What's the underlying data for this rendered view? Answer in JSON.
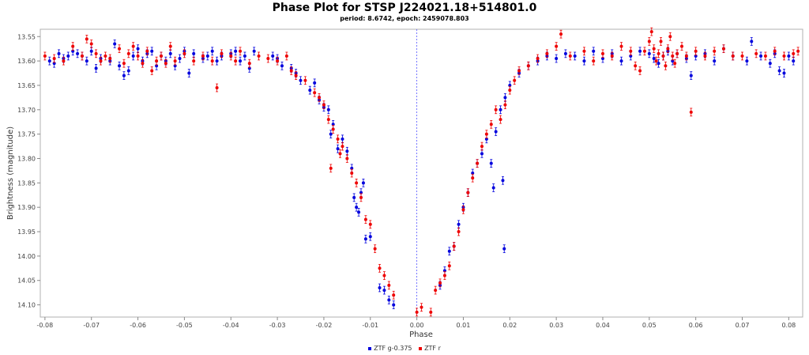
{
  "chart_data": {
    "type": "scatter",
    "title": "Phase Plot for STSP J224021.18+514801.0",
    "subtitle": "period: 8.6742, epoch: 2459078.803",
    "xlabel": "Phase",
    "ylabel": "Brightness (magnitude)",
    "xlim": [
      -0.081,
      0.083
    ],
    "ylim": [
      14.125,
      13.535
    ],
    "y_inverted": true,
    "x_ticks": [
      "-0.08",
      "-0.07",
      "-0.06",
      "-0.05",
      "-0.04",
      "-0.03",
      "-0.02",
      "-0.01",
      "0.00",
      "0.01",
      "0.02",
      "0.03",
      "0.04",
      "0.05",
      "0.06",
      "0.07",
      "0.08"
    ],
    "y_ticks": [
      "13.55",
      "13.60",
      "13.65",
      "13.70",
      "13.75",
      "13.80",
      "13.85",
      "13.90",
      "13.95",
      "14.00",
      "14.05",
      "14.10"
    ],
    "grid": false,
    "legend_position": "bottom",
    "reference_line_x": 0.0,
    "error_bar": 0.008,
    "series": [
      {
        "name": "ZTF g-0.375",
        "color": "#0000dd",
        "points": [
          [
            -0.079,
            13.6
          ],
          [
            -0.078,
            13.605
          ],
          [
            -0.077,
            13.585
          ],
          [
            -0.076,
            13.595
          ],
          [
            -0.075,
            13.59
          ],
          [
            -0.074,
            13.58
          ],
          [
            -0.073,
            13.585
          ],
          [
            -0.072,
            13.59
          ],
          [
            -0.071,
            13.6
          ],
          [
            -0.07,
            13.58
          ],
          [
            -0.069,
            13.615
          ],
          [
            -0.068,
            13.595
          ],
          [
            -0.066,
            13.6
          ],
          [
            -0.065,
            13.565
          ],
          [
            -0.064,
            13.61
          ],
          [
            -0.063,
            13.63
          ],
          [
            -0.062,
            13.62
          ],
          [
            -0.061,
            13.59
          ],
          [
            -0.06,
            13.575
          ],
          [
            -0.059,
            13.6
          ],
          [
            -0.058,
            13.585
          ],
          [
            -0.057,
            13.58
          ],
          [
            -0.056,
            13.61
          ],
          [
            -0.055,
            13.59
          ],
          [
            -0.054,
            13.6
          ],
          [
            -0.053,
            13.585
          ],
          [
            -0.052,
            13.61
          ],
          [
            -0.051,
            13.595
          ],
          [
            -0.05,
            13.58
          ],
          [
            -0.049,
            13.625
          ],
          [
            -0.048,
            13.585
          ],
          [
            -0.046,
            13.595
          ],
          [
            -0.045,
            13.59
          ],
          [
            -0.044,
            13.58
          ],
          [
            -0.043,
            13.6
          ],
          [
            -0.042,
            13.59
          ],
          [
            -0.04,
            13.585
          ],
          [
            -0.039,
            13.58
          ],
          [
            -0.038,
            13.6
          ],
          [
            -0.037,
            13.59
          ],
          [
            -0.036,
            13.615
          ],
          [
            -0.035,
            13.58
          ],
          [
            -0.031,
            13.59
          ],
          [
            -0.03,
            13.595
          ],
          [
            -0.029,
            13.61
          ],
          [
            -0.027,
            13.615
          ],
          [
            -0.026,
            13.625
          ],
          [
            -0.025,
            13.64
          ],
          [
            -0.023,
            13.66
          ],
          [
            -0.022,
            13.645
          ],
          [
            -0.021,
            13.68
          ],
          [
            -0.02,
            13.695
          ],
          [
            -0.019,
            13.7
          ],
          [
            -0.0185,
            13.75
          ],
          [
            -0.018,
            13.73
          ],
          [
            -0.017,
            13.78
          ],
          [
            -0.016,
            13.76
          ],
          [
            -0.015,
            13.785
          ],
          [
            -0.014,
            13.82
          ],
          [
            -0.0135,
            13.88
          ],
          [
            -0.013,
            13.9
          ],
          [
            -0.0125,
            13.91
          ],
          [
            -0.012,
            13.87
          ],
          [
            -0.0115,
            13.85
          ],
          [
            -0.011,
            13.965
          ],
          [
            -0.01,
            13.96
          ],
          [
            -0.008,
            14.065
          ],
          [
            -0.007,
            14.07
          ],
          [
            -0.006,
            14.09
          ],
          [
            -0.005,
            14.1
          ],
          [
            0.005,
            14.06
          ],
          [
            0.006,
            14.03
          ],
          [
            0.007,
            13.99
          ],
          [
            0.008,
            13.98
          ],
          [
            0.009,
            13.935
          ],
          [
            0.01,
            13.9
          ],
          [
            0.011,
            13.87
          ],
          [
            0.012,
            13.83
          ],
          [
            0.013,
            13.81
          ],
          [
            0.014,
            13.79
          ],
          [
            0.015,
            13.76
          ],
          [
            0.016,
            13.81
          ],
          [
            0.0165,
            13.86
          ],
          [
            0.017,
            13.745
          ],
          [
            0.018,
            13.7
          ],
          [
            0.019,
            13.675
          ],
          [
            0.0185,
            13.845
          ],
          [
            0.0188,
            13.985
          ],
          [
            0.02,
            13.65
          ],
          [
            0.022,
            13.625
          ],
          [
            0.024,
            13.61
          ],
          [
            0.026,
            13.6
          ],
          [
            0.028,
            13.59
          ],
          [
            0.03,
            13.595
          ],
          [
            0.032,
            13.585
          ],
          [
            0.034,
            13.59
          ],
          [
            0.036,
            13.6
          ],
          [
            0.038,
            13.58
          ],
          [
            0.04,
            13.595
          ],
          [
            0.042,
            13.585
          ],
          [
            0.044,
            13.6
          ],
          [
            0.046,
            13.59
          ],
          [
            0.048,
            13.58
          ],
          [
            0.05,
            13.585
          ],
          [
            0.051,
            13.595
          ],
          [
            0.052,
            13.605
          ],
          [
            0.053,
            13.59
          ],
          [
            0.054,
            13.58
          ],
          [
            0.055,
            13.6
          ],
          [
            0.056,
            13.585
          ],
          [
            0.058,
            13.595
          ],
          [
            0.059,
            13.63
          ],
          [
            0.06,
            13.59
          ],
          [
            0.062,
            13.585
          ],
          [
            0.064,
            13.6
          ],
          [
            0.066,
            13.575
          ],
          [
            0.068,
            13.59
          ],
          [
            0.071,
            13.6
          ],
          [
            0.072,
            13.56
          ],
          [
            0.074,
            13.59
          ],
          [
            0.076,
            13.605
          ],
          [
            0.077,
            13.585
          ],
          [
            0.078,
            13.62
          ],
          [
            0.079,
            13.625
          ],
          [
            0.08,
            13.59
          ],
          [
            0.081,
            13.6
          ]
        ]
      },
      {
        "name": "ZTF r",
        "color": "#ee0000",
        "points": [
          [
            -0.08,
            13.59
          ],
          [
            -0.078,
            13.595
          ],
          [
            -0.076,
            13.6
          ],
          [
            -0.074,
            13.57
          ],
          [
            -0.072,
            13.59
          ],
          [
            -0.071,
            13.555
          ],
          [
            -0.07,
            13.565
          ],
          [
            -0.069,
            13.585
          ],
          [
            -0.068,
            13.6
          ],
          [
            -0.067,
            13.59
          ],
          [
            -0.066,
            13.595
          ],
          [
            -0.064,
            13.575
          ],
          [
            -0.063,
            13.605
          ],
          [
            -0.062,
            13.585
          ],
          [
            -0.061,
            13.57
          ],
          [
            -0.06,
            13.59
          ],
          [
            -0.059,
            13.605
          ],
          [
            -0.058,
            13.58
          ],
          [
            -0.057,
            13.62
          ],
          [
            -0.056,
            13.6
          ],
          [
            -0.055,
            13.59
          ],
          [
            -0.054,
            13.605
          ],
          [
            -0.053,
            13.57
          ],
          [
            -0.052,
            13.6
          ],
          [
            -0.05,
            13.585
          ],
          [
            -0.048,
            13.6
          ],
          [
            -0.046,
            13.59
          ],
          [
            -0.044,
            13.6
          ],
          [
            -0.043,
            13.655
          ],
          [
            -0.042,
            13.585
          ],
          [
            -0.04,
            13.59
          ],
          [
            -0.039,
            13.6
          ],
          [
            -0.038,
            13.58
          ],
          [
            -0.036,
            13.605
          ],
          [
            -0.034,
            13.59
          ],
          [
            -0.032,
            13.595
          ],
          [
            -0.03,
            13.6
          ],
          [
            -0.028,
            13.59
          ],
          [
            -0.027,
            13.62
          ],
          [
            -0.026,
            13.63
          ],
          [
            -0.024,
            13.64
          ],
          [
            -0.022,
            13.665
          ],
          [
            -0.021,
            13.675
          ],
          [
            -0.02,
            13.69
          ],
          [
            -0.019,
            13.72
          ],
          [
            -0.0185,
            13.82
          ],
          [
            -0.018,
            13.74
          ],
          [
            -0.017,
            13.76
          ],
          [
            -0.0165,
            13.79
          ],
          [
            -0.016,
            13.775
          ],
          [
            -0.015,
            13.8
          ],
          [
            -0.014,
            13.83
          ],
          [
            -0.013,
            13.85
          ],
          [
            -0.012,
            13.88
          ],
          [
            -0.011,
            13.925
          ],
          [
            -0.01,
            13.935
          ],
          [
            -0.009,
            13.985
          ],
          [
            -0.008,
            14.025
          ],
          [
            -0.007,
            14.04
          ],
          [
            -0.006,
            14.06
          ],
          [
            -0.005,
            14.08
          ],
          [
            0.0,
            14.115
          ],
          [
            0.001,
            14.105
          ],
          [
            0.003,
            14.115
          ],
          [
            0.004,
            14.07
          ],
          [
            0.005,
            14.055
          ],
          [
            0.006,
            14.04
          ],
          [
            0.007,
            14.02
          ],
          [
            0.008,
            13.98
          ],
          [
            0.009,
            13.95
          ],
          [
            0.01,
            13.905
          ],
          [
            0.011,
            13.87
          ],
          [
            0.012,
            13.84
          ],
          [
            0.013,
            13.81
          ],
          [
            0.014,
            13.775
          ],
          [
            0.015,
            13.75
          ],
          [
            0.016,
            13.73
          ],
          [
            0.017,
            13.7
          ],
          [
            0.018,
            13.72
          ],
          [
            0.019,
            13.69
          ],
          [
            0.02,
            13.66
          ],
          [
            0.021,
            13.64
          ],
          [
            0.022,
            13.62
          ],
          [
            0.024,
            13.61
          ],
          [
            0.026,
            13.595
          ],
          [
            0.028,
            13.585
          ],
          [
            0.03,
            13.57
          ],
          [
            0.031,
            13.545
          ],
          [
            0.033,
            13.59
          ],
          [
            0.036,
            13.58
          ],
          [
            0.038,
            13.6
          ],
          [
            0.04,
            13.585
          ],
          [
            0.042,
            13.59
          ],
          [
            0.044,
            13.57
          ],
          [
            0.046,
            13.58
          ],
          [
            0.047,
            13.61
          ],
          [
            0.048,
            13.62
          ],
          [
            0.049,
            13.58
          ],
          [
            0.05,
            13.56
          ],
          [
            0.0505,
            13.54
          ],
          [
            0.051,
            13.575
          ],
          [
            0.0515,
            13.6
          ],
          [
            0.052,
            13.585
          ],
          [
            0.0525,
            13.56
          ],
          [
            0.053,
            13.59
          ],
          [
            0.0535,
            13.61
          ],
          [
            0.054,
            13.575
          ],
          [
            0.0545,
            13.55
          ],
          [
            0.055,
            13.59
          ],
          [
            0.0555,
            13.605
          ],
          [
            0.056,
            13.585
          ],
          [
            0.057,
            13.57
          ],
          [
            0.058,
            13.59
          ],
          [
            0.059,
            13.705
          ],
          [
            0.06,
            13.58
          ],
          [
            0.062,
            13.59
          ],
          [
            0.064,
            13.58
          ],
          [
            0.066,
            13.575
          ],
          [
            0.068,
            13.59
          ],
          [
            0.07,
            13.59
          ],
          [
            0.073,
            13.585
          ],
          [
            0.075,
            13.59
          ],
          [
            0.077,
            13.58
          ],
          [
            0.079,
            13.59
          ],
          [
            0.081,
            13.585
          ],
          [
            0.082,
            13.58
          ]
        ]
      }
    ]
  }
}
